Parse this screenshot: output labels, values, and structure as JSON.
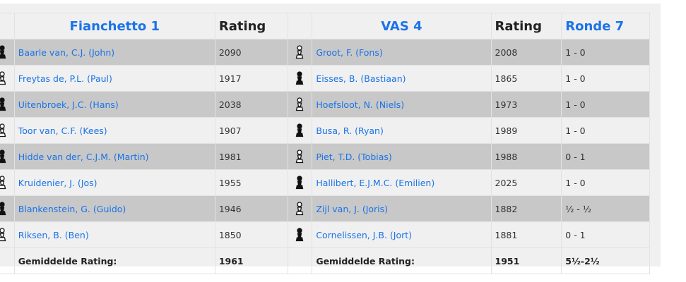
{
  "header": {
    "team1": "Fianchetto 1",
    "rating1": "Rating",
    "team2": "VAS 4",
    "rating2": "Rating",
    "round": "Ronde 7"
  },
  "rows": [
    {
      "p1": "Baarle van, C.J. (John)",
      "r1": "2090",
      "c1": "black",
      "p2": "Groot, F. (Fons)",
      "r2": "2008",
      "c2": "white",
      "res": "1 - 0"
    },
    {
      "p1": "Freytas de, P.L. (Paul)",
      "r1": "1917",
      "c1": "white",
      "p2": "Eisses, B. (Bastiaan)",
      "r2": "1865",
      "c2": "black",
      "res": "1 - 0"
    },
    {
      "p1": "Uitenbroek, J.C. (Hans)",
      "r1": "2038",
      "c1": "black",
      "p2": "Hoefsloot, N. (Niels)",
      "r2": "1973",
      "c2": "white",
      "res": "1 - 0"
    },
    {
      "p1": "Toor van, C.F. (Kees)",
      "r1": "1907",
      "c1": "white",
      "p2": "Busa, R. (Ryan)",
      "r2": "1989",
      "c2": "black",
      "res": "1 - 0"
    },
    {
      "p1": "Hidde van der, C.J.M. (Martin)",
      "r1": "1981",
      "c1": "black",
      "p2": "Piet, T.D. (Tobias)",
      "r2": "1988",
      "c2": "white",
      "res": "0 - 1"
    },
    {
      "p1": "Kruidenier, J. (Jos)",
      "r1": "1955",
      "c1": "white",
      "p2": "Hallibert, E.J.M.C. (Emilien)",
      "r2": "2025",
      "c2": "black",
      "res": "1 - 0"
    },
    {
      "p1": "Blankenstein, G. (Guido)",
      "r1": "1946",
      "c1": "black",
      "p2": "Zijl van, J. (Joris)",
      "r2": "1882",
      "c2": "white",
      "res": "½ - ½"
    },
    {
      "p1": "Riksen, B. (Ben)",
      "r1": "1850",
      "c1": "white",
      "p2": "Cornelissen, J.B. (Jort)",
      "r2": "1881",
      "c2": "black",
      "res": "0 - 1"
    }
  ],
  "footer": {
    "label1": "Gemiddelde Rating:",
    "avg1": "1961",
    "label2": "Gemiddelde Rating:",
    "avg2": "1951",
    "total": "5½-2½"
  }
}
